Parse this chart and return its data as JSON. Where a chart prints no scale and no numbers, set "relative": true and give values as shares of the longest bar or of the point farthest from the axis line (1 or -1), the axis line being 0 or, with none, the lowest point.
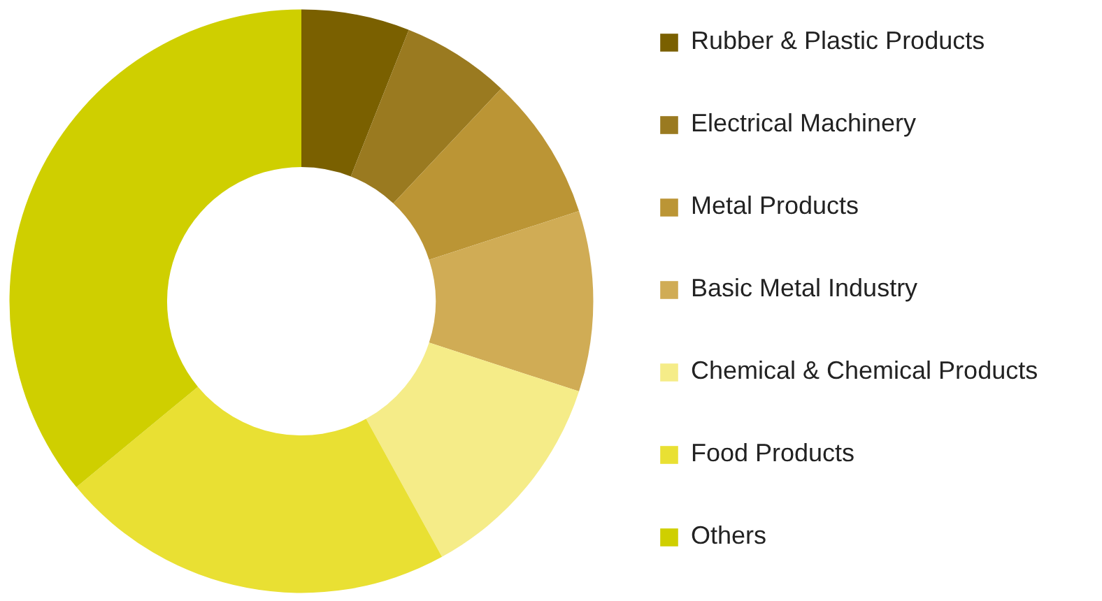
{
  "chart_data": {
    "type": "donut",
    "relative": true,
    "legend": "right",
    "categories": [
      "Rubber & Plastic Products",
      "Electrical Machinery",
      "Metal Products",
      "Basic Metal Industry",
      "Chemical & Chemical Products",
      "Food Products",
      "Others"
    ],
    "values": [
      6,
      6,
      8,
      10,
      12,
      22,
      36
    ],
    "colors": [
      "#7a6000",
      "#9a7a20",
      "#bb9535",
      "#d0ac55",
      "#f5ec88",
      "#e9e033",
      "#cfcf00"
    ]
  }
}
